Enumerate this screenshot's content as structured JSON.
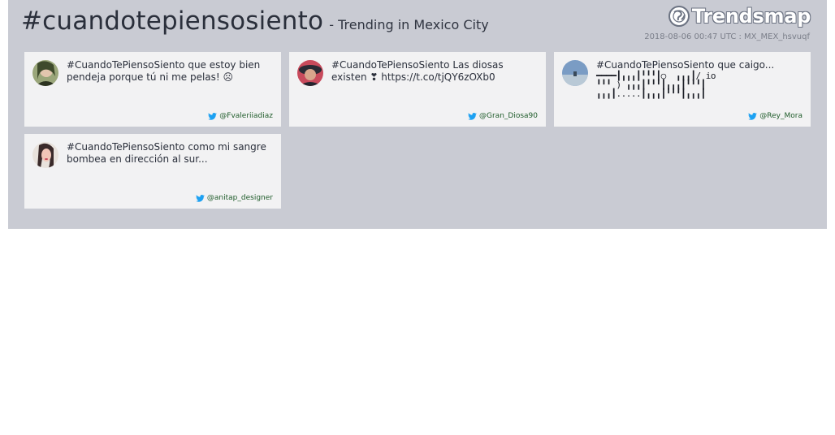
{
  "header": {
    "hashtag": "#cuandotepiensosiento",
    "subtitle": "- Trending in Mexico City",
    "logo_text": "Trendsmap",
    "meta": "2018-08-06 00:47 UTC : MX_MEX_hsvuqf"
  },
  "tweets": [
    {
      "text": "#CuandoTePiensoSiento que estoy bien pendeja porque tú ni me pelas! ☹",
      "handle": "@Fvaleriiadiaz",
      "avatar_colors": [
        "#8a9a6a",
        "#3e4a2c"
      ]
    },
    {
      "text": "#CuandoTePiensoSiento Las diosas existen ❣ https://t.co/tjQY6zOXb0",
      "handle": "@Gran_Diosa90",
      "avatar_colors": [
        "#c84a5c",
        "#2a2a35"
      ]
    },
    {
      "text": "#CuandoTePiensoSiento que caigo...",
      "ascii_lines": [
        "━━━━┃╻╻╻┃╹╹╹┃○  ╻╻╻┃/ io",
        "╹╹╹ ) ╻╻╻┃╹╹╹┃╻╻╻┃╹╹╹┃",
        "╻╻╻┃.....┃╻╻╻┃╹╹╹┃╻╻╻┃"
      ],
      "handle": "@Rey_Mora",
      "avatar_colors": [
        "#6b8fb8",
        "#c9d6e3"
      ]
    },
    {
      "text": "#CuandoTePiensoSiento como mi sangre bombea en dirección al sur...",
      "handle": "@anitap_designer",
      "avatar_colors": [
        "#e8dcd6",
        "#3a2a2a"
      ]
    }
  ]
}
